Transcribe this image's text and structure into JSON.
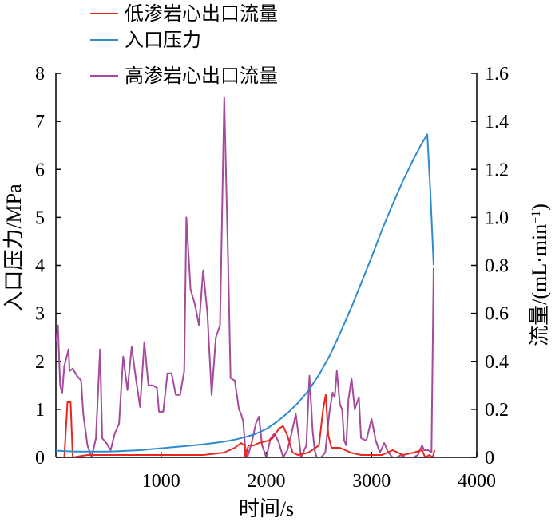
{
  "chart_data": {
    "type": "line",
    "xlabel": "时间/s",
    "ylabel_left": "入口压力/MPa",
    "ylabel_right_parts": [
      "流量/(mL·min",
      "−1",
      ")"
    ],
    "xlim": [
      0,
      4000
    ],
    "ylim_left": [
      0,
      8
    ],
    "ylim_right": [
      0,
      1.6
    ],
    "x_ticks": [
      1000,
      2000,
      3000,
      4000
    ],
    "y_left_ticks": [
      0,
      1,
      2,
      3,
      4,
      5,
      6,
      7,
      8
    ],
    "y_right_ticks": [
      "0",
      "0.2",
      "0.4",
      "0.6",
      "0.8",
      "1.0",
      "1.2",
      "1.4",
      "1.6"
    ],
    "grid": false,
    "legend_position": "top",
    "series": [
      {
        "name": "低渗岩心出口流量",
        "axis": "right",
        "color": "#e8281e",
        "points": [
          [
            80,
            0.0
          ],
          [
            110,
            0.23
          ],
          [
            140,
            0.23
          ],
          [
            160,
            0.0
          ],
          [
            300,
            0.01
          ],
          [
            600,
            0.01
          ],
          [
            1000,
            0.01
          ],
          [
            1400,
            0.01
          ],
          [
            1600,
            0.02
          ],
          [
            1700,
            0.04
          ],
          [
            1760,
            0.06
          ],
          [
            1790,
            0.05
          ],
          [
            1800,
            0.0
          ],
          [
            1830,
            0.05
          ],
          [
            1880,
            0.05
          ],
          [
            1930,
            0.06
          ],
          [
            2020,
            0.07
          ],
          [
            2060,
            0.08
          ],
          [
            2120,
            0.12
          ],
          [
            2160,
            0.13
          ],
          [
            2200,
            0.09
          ],
          [
            2250,
            0.02
          ],
          [
            2300,
            0.01
          ],
          [
            2400,
            0.02
          ],
          [
            2500,
            0.05
          ],
          [
            2540,
            0.2
          ],
          [
            2565,
            0.26
          ],
          [
            2590,
            0.09
          ],
          [
            2620,
            0.04
          ],
          [
            2700,
            0.04
          ],
          [
            2800,
            0.02
          ],
          [
            2900,
            0.01
          ],
          [
            3000,
            0.01
          ],
          [
            3100,
            0.01
          ],
          [
            3200,
            0.03
          ],
          [
            3300,
            0.01
          ],
          [
            3400,
            0.02
          ],
          [
            3480,
            0.03
          ],
          [
            3510,
            0.0
          ],
          [
            3550,
            0.01
          ],
          [
            3580,
            0.0
          ],
          [
            3600,
            0.03
          ]
        ]
      },
      {
        "name": "入口压力",
        "axis": "left",
        "color": "#2e8bd0",
        "points": [
          [
            0,
            0.14
          ],
          [
            100,
            0.13
          ],
          [
            200,
            0.12
          ],
          [
            300,
            0.12
          ],
          [
            400,
            0.12
          ],
          [
            500,
            0.12
          ],
          [
            600,
            0.13
          ],
          [
            700,
            0.14
          ],
          [
            800,
            0.15
          ],
          [
            900,
            0.17
          ],
          [
            1000,
            0.19
          ],
          [
            1100,
            0.21
          ],
          [
            1200,
            0.23
          ],
          [
            1300,
            0.25
          ],
          [
            1400,
            0.27
          ],
          [
            1500,
            0.3
          ],
          [
            1600,
            0.33
          ],
          [
            1700,
            0.37
          ],
          [
            1800,
            0.42
          ],
          [
            1900,
            0.49
          ],
          [
            2000,
            0.59
          ],
          [
            2100,
            0.74
          ],
          [
            2200,
            0.92
          ],
          [
            2300,
            1.13
          ],
          [
            2400,
            1.39
          ],
          [
            2500,
            1.72
          ],
          [
            2600,
            2.11
          ],
          [
            2700,
            2.58
          ],
          [
            2800,
            3.08
          ],
          [
            2900,
            3.62
          ],
          [
            3000,
            4.17
          ],
          [
            3100,
            4.74
          ],
          [
            3200,
            5.27
          ],
          [
            3300,
            5.77
          ],
          [
            3400,
            6.22
          ],
          [
            3480,
            6.55
          ],
          [
            3530,
            6.73
          ],
          [
            3560,
            5.5
          ],
          [
            3590,
            4.0
          ]
        ]
      },
      {
        "name": "高渗岩心出口流量",
        "axis": "right",
        "color": "#a54a9c",
        "points": [
          [
            0,
            0.48
          ],
          [
            20,
            0.55
          ],
          [
            40,
            0.3
          ],
          [
            60,
            0.27
          ],
          [
            80,
            0.38
          ],
          [
            120,
            0.45
          ],
          [
            130,
            0.36
          ],
          [
            160,
            0.37
          ],
          [
            200,
            0.34
          ],
          [
            240,
            0.32
          ],
          [
            260,
            0.18
          ],
          [
            300,
            0.05
          ],
          [
            340,
            0.0
          ],
          [
            380,
            0.08
          ],
          [
            420,
            0.45
          ],
          [
            440,
            0.08
          ],
          [
            480,
            0.06
          ],
          [
            520,
            0.03
          ],
          [
            560,
            0.1
          ],
          [
            600,
            0.14
          ],
          [
            640,
            0.42
          ],
          [
            680,
            0.28
          ],
          [
            720,
            0.46
          ],
          [
            760,
            0.33
          ],
          [
            800,
            0.21
          ],
          [
            840,
            0.48
          ],
          [
            880,
            0.3
          ],
          [
            920,
            0.3
          ],
          [
            960,
            0.29
          ],
          [
            980,
            0.19
          ],
          [
            1020,
            0.19
          ],
          [
            1060,
            0.35
          ],
          [
            1100,
            0.35
          ],
          [
            1140,
            0.26
          ],
          [
            1180,
            0.26
          ],
          [
            1220,
            0.36
          ],
          [
            1240,
            1.0
          ],
          [
            1280,
            0.7
          ],
          [
            1320,
            0.64
          ],
          [
            1360,
            0.55
          ],
          [
            1400,
            0.78
          ],
          [
            1440,
            0.6
          ],
          [
            1480,
            0.26
          ],
          [
            1520,
            0.5
          ],
          [
            1560,
            0.55
          ],
          [
            1600,
            1.5
          ],
          [
            1640,
            0.75
          ],
          [
            1660,
            0.33
          ],
          [
            1700,
            0.32
          ],
          [
            1740,
            0.2
          ],
          [
            1760,
            0.18
          ],
          [
            1780,
            0.15
          ],
          [
            1800,
            0.04
          ],
          [
            1820,
            0.0
          ],
          [
            1860,
            0.06
          ],
          [
            1900,
            0.14
          ],
          [
            1930,
            0.17
          ],
          [
            1960,
            0.05
          ],
          [
            2000,
            0.0
          ],
          [
            2040,
            0.08
          ],
          [
            2080,
            0.1
          ],
          [
            2120,
            0.06
          ],
          [
            2160,
            0.0
          ],
          [
            2200,
            0.03
          ],
          [
            2240,
            0.1
          ],
          [
            2280,
            0.18
          ],
          [
            2310,
            0.08
          ],
          [
            2330,
            0.0
          ],
          [
            2380,
            0.05
          ],
          [
            2410,
            0.34
          ],
          [
            2440,
            0.11
          ],
          [
            2460,
            0.03
          ],
          [
            2480,
            0.0
          ],
          [
            2520,
            0.0
          ],
          [
            2560,
            0.02
          ],
          [
            2600,
            0.19
          ],
          [
            2630,
            0.27
          ],
          [
            2650,
            0.25
          ],
          [
            2670,
            0.36
          ],
          [
            2700,
            0.22
          ],
          [
            2720,
            0.2
          ],
          [
            2740,
            0.07
          ],
          [
            2760,
            0.05
          ],
          [
            2780,
            0.24
          ],
          [
            2810,
            0.33
          ],
          [
            2840,
            0.2
          ],
          [
            2880,
            0.25
          ],
          [
            2900,
            0.08
          ],
          [
            2950,
            0.07
          ],
          [
            3000,
            0.16
          ],
          [
            3040,
            0.07
          ],
          [
            3080,
            0.02
          ],
          [
            3120,
            0.06
          ],
          [
            3160,
            0.02
          ],
          [
            3200,
            0.0
          ],
          [
            3240,
            0.0
          ],
          [
            3280,
            0.01
          ],
          [
            3320,
            0.0
          ],
          [
            3360,
            0.0
          ],
          [
            3400,
            0.0
          ],
          [
            3440,
            0.01
          ],
          [
            3480,
            0.05
          ],
          [
            3500,
            0.03
          ],
          [
            3540,
            0.03
          ],
          [
            3570,
            0.02
          ],
          [
            3590,
            0.79
          ]
        ]
      }
    ]
  }
}
